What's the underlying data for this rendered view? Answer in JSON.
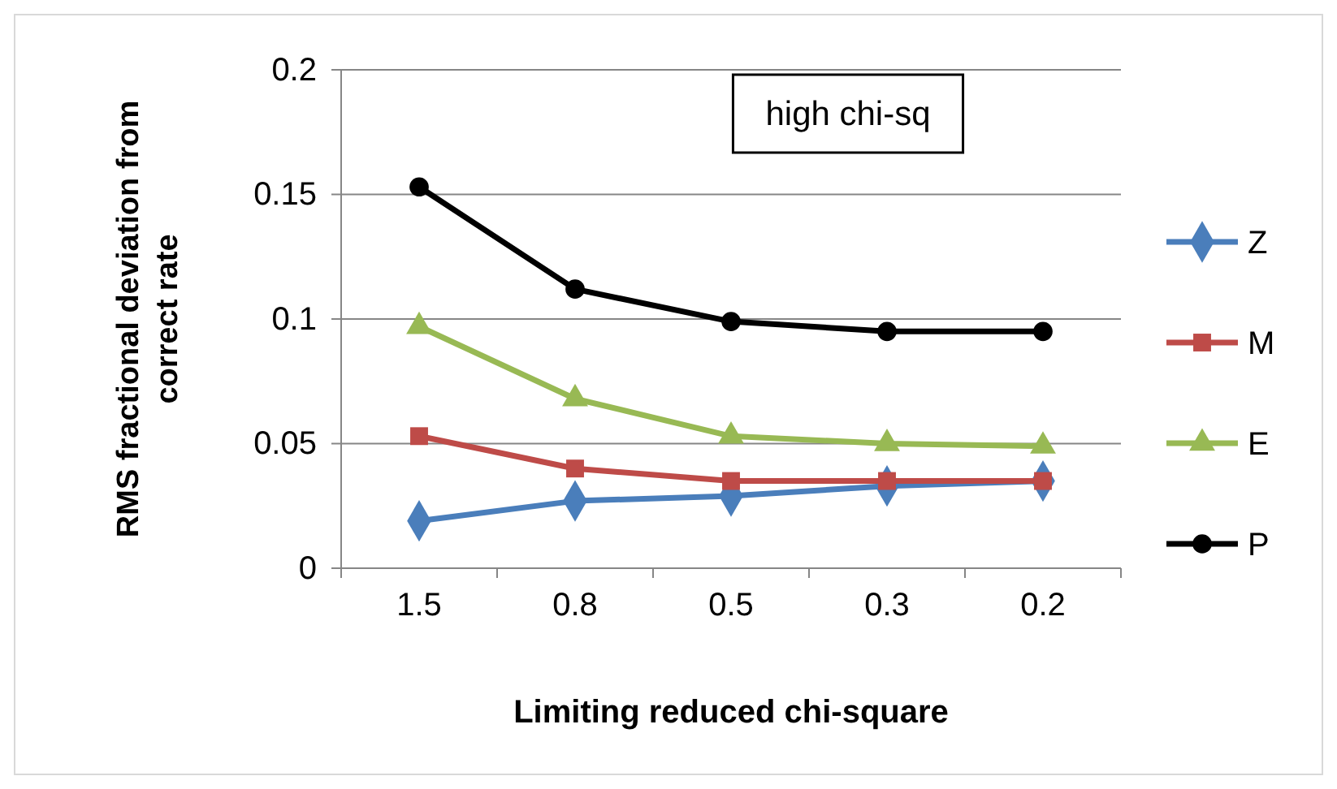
{
  "chart_data": {
    "type": "line",
    "xlabel": "Limiting reduced chi-square",
    "ylabel": "RMS fractional deviation from correct rate",
    "categories": [
      "1.5",
      "0.8",
      "0.5",
      "0.3",
      "0.2"
    ],
    "series": [
      {
        "name": "Z",
        "color": "#4a7ebb",
        "marker": "diamond",
        "values": [
          0.019,
          0.027,
          0.029,
          0.033,
          0.035
        ]
      },
      {
        "name": "M",
        "color": "#be4b48",
        "marker": "square",
        "values": [
          0.053,
          0.04,
          0.035,
          0.035,
          0.035
        ]
      },
      {
        "name": "E",
        "color": "#98b954",
        "marker": "triangle",
        "values": [
          0.097,
          0.068,
          0.053,
          0.05,
          0.049
        ]
      },
      {
        "name": "P",
        "color": "#000000",
        "marker": "circle",
        "values": [
          0.153,
          0.112,
          0.099,
          0.095,
          0.095
        ]
      }
    ],
    "ylim": [
      0,
      0.2
    ],
    "yticks": [
      0,
      0.05,
      0.1,
      0.15,
      0.2
    ],
    "grid": "y",
    "legend": "right",
    "line_style": "solid",
    "annotations": [
      "high chi-sq"
    ]
  }
}
